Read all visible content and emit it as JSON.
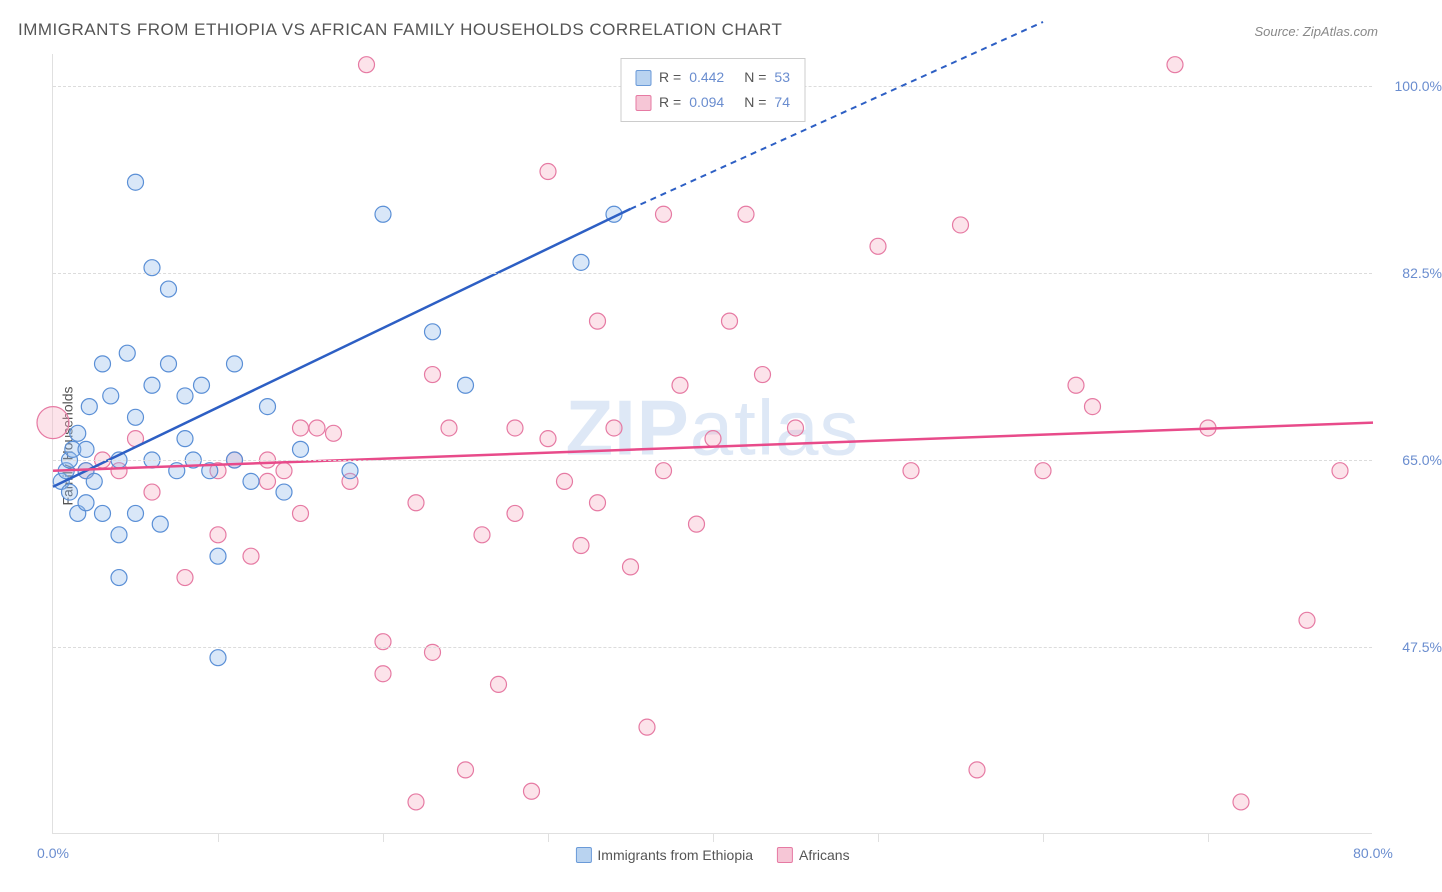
{
  "title": "IMMIGRANTS FROM ETHIOPIA VS AFRICAN FAMILY HOUSEHOLDS CORRELATION CHART",
  "source": "Source: ZipAtlas.com",
  "ylabel": "Family Households",
  "watermark_bold": "ZIP",
  "watermark_light": "atlas",
  "chart": {
    "type": "scatter",
    "xlim": [
      0,
      80
    ],
    "ylim": [
      30,
      103
    ],
    "xticks": [
      0,
      80
    ],
    "xtick_labels": [
      "0.0%",
      "80.0%"
    ],
    "xtick_minor": [
      10,
      20,
      30,
      40,
      50,
      60,
      70
    ],
    "yticks": [
      47.5,
      65.0,
      82.5,
      100.0
    ],
    "ytick_labels": [
      "47.5%",
      "65.0%",
      "82.5%",
      "100.0%"
    ],
    "grid_color": "#dcdcdc",
    "background": "#ffffff",
    "marker_radius": 8,
    "series": [
      {
        "name": "Immigrants from Ethiopia",
        "color_fill": "rgba(145,185,235,0.35)",
        "color_stroke": "#5a8fd6",
        "swatch_bg": "#b9d3f0",
        "swatch_border": "#6a9ad8",
        "R": "0.442",
        "N": "53",
        "trend": {
          "x1": 0,
          "y1": 62.5,
          "x2": 35,
          "y2": 88.5,
          "x2_ext": 60,
          "y2_ext": 106,
          "color": "#2d5fc4",
          "width": 2.5
        },
        "points": [
          [
            0.5,
            63
          ],
          [
            0.8,
            64
          ],
          [
            1,
            65
          ],
          [
            1,
            62
          ],
          [
            1.2,
            66
          ],
          [
            1.5,
            60
          ],
          [
            1.5,
            67.5
          ],
          [
            2,
            64
          ],
          [
            2,
            61
          ],
          [
            2,
            66
          ],
          [
            2.2,
            70
          ],
          [
            2.5,
            63
          ],
          [
            3,
            60
          ],
          [
            3,
            74
          ],
          [
            3.5,
            71
          ],
          [
            4,
            65
          ],
          [
            4,
            58
          ],
          [
            4,
            54
          ],
          [
            4.5,
            75
          ],
          [
            5,
            69
          ],
          [
            5,
            60
          ],
          [
            5,
            91
          ],
          [
            6,
            65
          ],
          [
            6,
            72
          ],
          [
            6,
            83
          ],
          [
            6.5,
            59
          ],
          [
            7,
            74
          ],
          [
            7,
            81
          ],
          [
            7.5,
            64
          ],
          [
            8,
            71
          ],
          [
            8,
            67
          ],
          [
            8.5,
            65
          ],
          [
            9,
            72
          ],
          [
            9.5,
            64
          ],
          [
            10,
            56
          ],
          [
            10,
            46.5
          ],
          [
            11,
            74
          ],
          [
            11,
            65
          ],
          [
            12,
            63
          ],
          [
            13,
            70
          ],
          [
            14,
            62
          ],
          [
            15,
            66
          ],
          [
            18,
            64
          ],
          [
            20,
            88
          ],
          [
            23,
            77
          ],
          [
            25,
            72
          ],
          [
            32,
            83.5
          ],
          [
            34,
            88
          ]
        ]
      },
      {
        "name": "Africans",
        "color_fill": "rgba(245,175,195,0.35)",
        "color_stroke": "#e67aa3",
        "swatch_bg": "#f6c6d6",
        "swatch_border": "#e67aa3",
        "R": "0.094",
        "N": "74",
        "trend": {
          "x1": 0,
          "y1": 64,
          "x2": 80,
          "y2": 68.5,
          "color": "#e84b8a",
          "width": 2.5
        },
        "points": [
          [
            0,
            68.5
          ],
          [
            2,
            64
          ],
          [
            3,
            65
          ],
          [
            4,
            64
          ],
          [
            5,
            67
          ],
          [
            6,
            62
          ],
          [
            8,
            54
          ],
          [
            10,
            58
          ],
          [
            10,
            64
          ],
          [
            11,
            65
          ],
          [
            12,
            56
          ],
          [
            13,
            65
          ],
          [
            13,
            63
          ],
          [
            14,
            64
          ],
          [
            15,
            68
          ],
          [
            15,
            60
          ],
          [
            16,
            68
          ],
          [
            17,
            67.5
          ],
          [
            18,
            63
          ],
          [
            19,
            102
          ],
          [
            20,
            48
          ],
          [
            20,
            45
          ],
          [
            22,
            61
          ],
          [
            22,
            33
          ],
          [
            23,
            47
          ],
          [
            23,
            73
          ],
          [
            24,
            68
          ],
          [
            25,
            36
          ],
          [
            26,
            58
          ],
          [
            27,
            44
          ],
          [
            28,
            68
          ],
          [
            28,
            60
          ],
          [
            29,
            34
          ],
          [
            30,
            67
          ],
          [
            30,
            92
          ],
          [
            31,
            63
          ],
          [
            32,
            57
          ],
          [
            33,
            78
          ],
          [
            33,
            61
          ],
          [
            34,
            68
          ],
          [
            35,
            55
          ],
          [
            36,
            40
          ],
          [
            37,
            88
          ],
          [
            37,
            64
          ],
          [
            38,
            72
          ],
          [
            39,
            59
          ],
          [
            40,
            67
          ],
          [
            41,
            78
          ],
          [
            42,
            88
          ],
          [
            43,
            73
          ],
          [
            45,
            68
          ],
          [
            50,
            85
          ],
          [
            52,
            64
          ],
          [
            55,
            87
          ],
          [
            56,
            36
          ],
          [
            60,
            64
          ],
          [
            62,
            72
          ],
          [
            63,
            70
          ],
          [
            68,
            102
          ],
          [
            70,
            68
          ],
          [
            72,
            33
          ],
          [
            76,
            50
          ],
          [
            78,
            64
          ]
        ]
      }
    ],
    "legend_bottom": [
      {
        "label": "Immigrants from Ethiopia",
        "bg": "#b9d3f0",
        "border": "#6a9ad8"
      },
      {
        "label": "Africans",
        "bg": "#f6c6d6",
        "border": "#e67aa3"
      }
    ]
  }
}
